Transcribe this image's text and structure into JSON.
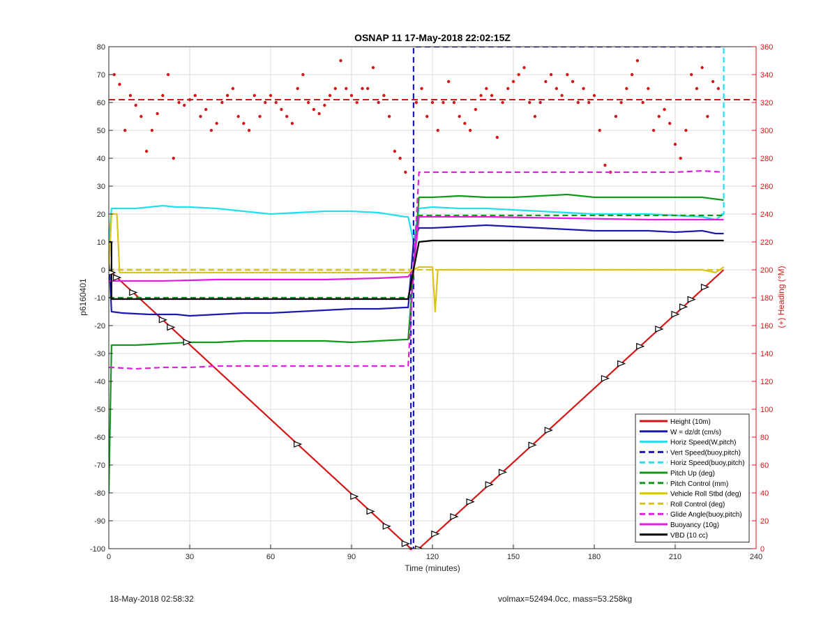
{
  "chart_data": {
    "type": "line",
    "title": "OSNAP 11 17-May-2018 22:02:15Z",
    "xlabel": "Time (minutes)",
    "ylabel": "p6160401",
    "y2label": "(+) Heading (°M)",
    "xlim": [
      0,
      240
    ],
    "ylim": [
      -100,
      80
    ],
    "y2lim": [
      0,
      360
    ],
    "xticks": [
      "0",
      "30",
      "60",
      "90",
      "120",
      "150",
      "180",
      "210",
      "240"
    ],
    "yticks": [
      "80",
      "70",
      "60",
      "50",
      "40",
      "30",
      "20",
      "10",
      "0",
      "-10",
      "-20",
      "-30",
      "-40",
      "-50",
      "-60",
      "-70",
      "-80",
      "-90",
      "-100"
    ],
    "y2ticks": [
      "360",
      "340",
      "320",
      "300",
      "280",
      "260",
      "240",
      "220",
      "200",
      "180",
      "160",
      "140",
      "120",
      "100",
      "80",
      "60",
      "40",
      "20",
      "0"
    ],
    "grid": true,
    "legend_position": "bottom-right",
    "colors": {
      "red": "#d41616",
      "blue": "#1a1aad",
      "cyan": "#20e0f0",
      "green": "#0f9a1a",
      "yellow": "#d9c51a",
      "magenta": "#e01ee0",
      "black": "#000000"
    },
    "series": [
      {
        "name": "Height (10m)",
        "color": "#d41616",
        "dash": false,
        "x": [
          0,
          1,
          112,
          115,
          228
        ],
        "y": [
          0,
          -1,
          -100,
          -100,
          0
        ]
      },
      {
        "name": "W = dz/dt (cm/s)",
        "color": "#1a1aad",
        "dash": false,
        "x": [
          0,
          1,
          5,
          15,
          25,
          30,
          40,
          50,
          60,
          70,
          80,
          90,
          100,
          110,
          111,
          113,
          115,
          120,
          130,
          140,
          150,
          160,
          170,
          180,
          190,
          200,
          210,
          220,
          225,
          228
        ],
        "y": [
          5,
          -15,
          -15.5,
          -16,
          -16,
          -16.5,
          -16,
          -15.5,
          -15.5,
          -15,
          -14.5,
          -14,
          -14,
          -13.5,
          -13.5,
          10,
          15,
          15,
          15.5,
          16,
          15.5,
          15,
          14.5,
          14,
          14,
          14,
          13.5,
          14,
          13,
          13
        ]
      },
      {
        "name": "Horiz Speed(W,pitch)",
        "color": "#20e0f0",
        "dash": false,
        "x": [
          0,
          1,
          5,
          10,
          20,
          25,
          30,
          40,
          50,
          60,
          70,
          80,
          90,
          100,
          110,
          111,
          113,
          115,
          120,
          130,
          140,
          150,
          160,
          170,
          180,
          190,
          200,
          210,
          220,
          225,
          228
        ],
        "y": [
          10,
          22,
          22,
          22,
          23,
          22.5,
          22.5,
          22,
          21,
          20,
          20.5,
          21,
          21,
          20.5,
          19,
          19,
          10,
          22,
          22.5,
          22,
          22,
          21.5,
          21,
          20.5,
          20,
          20,
          20,
          19.5,
          19,
          18,
          20
        ]
      },
      {
        "name": "Vert Speed(buoy,pitch)",
        "color": "#1a1aad",
        "dash": true,
        "x": [
          0,
          1,
          112,
          112,
          113,
          113,
          228
        ],
        "y": [
          0,
          0,
          0,
          -100,
          -100,
          80,
          80
        ]
      },
      {
        "name": "Horiz Speed(buoy,pitch)",
        "color": "#20e0f0",
        "dash": true,
        "x": [
          227,
          228,
          228
        ],
        "y": [
          20,
          20,
          80
        ]
      },
      {
        "name": "Pitch Up (deg)",
        "color": "#0f9a1a",
        "dash": false,
        "x": [
          0,
          1,
          10,
          20,
          30,
          40,
          50,
          60,
          70,
          80,
          90,
          100,
          110,
          111,
          113,
          115,
          120,
          130,
          140,
          150,
          160,
          170,
          180,
          190,
          200,
          210,
          220,
          228
        ],
        "y": [
          -80,
          -27,
          -27,
          -26.5,
          -26,
          -26,
          -25.5,
          -25.5,
          -25.5,
          -25.5,
          -26,
          -25.5,
          -25,
          -25,
          0,
          26,
          26,
          26.5,
          26,
          26,
          26.5,
          27,
          26,
          26,
          26,
          26,
          26,
          25
        ]
      },
      {
        "name": "Pitch Control (mm)",
        "color": "#0f9a1a",
        "dash": true,
        "x": [
          0,
          1,
          111,
          113,
          115,
          228
        ],
        "y": [
          -10,
          -10,
          -10,
          0,
          19.5,
          19.5
        ]
      },
      {
        "name": "Vehicle Roll Stbd (deg)",
        "color": "#d9c51a",
        "dash": false,
        "x": [
          0,
          1,
          3,
          4,
          5,
          10,
          20,
          30,
          40,
          50,
          60,
          70,
          80,
          90,
          100,
          110,
          111,
          113,
          115,
          120,
          121,
          122,
          130,
          140,
          150,
          160,
          170,
          180,
          190,
          200,
          210,
          220,
          225,
          228
        ],
        "y": [
          0,
          20,
          20,
          -1,
          -1,
          -1,
          -1,
          -1,
          -1,
          -1,
          -1,
          -1,
          -1,
          -1,
          -1,
          -1,
          -1,
          0,
          1,
          1,
          -15,
          0,
          0,
          0,
          0,
          0,
          0,
          0,
          0,
          0,
          0,
          0,
          -1,
          1
        ]
      },
      {
        "name": "Roll Control (deg)",
        "color": "#d9c51a",
        "dash": true,
        "x": [
          0,
          1,
          10,
          30,
          60,
          90,
          110,
          111,
          113,
          115,
          150,
          200,
          228
        ],
        "y": [
          0,
          0,
          0,
          0,
          0,
          0,
          0,
          0,
          0,
          0,
          0,
          0,
          0
        ]
      },
      {
        "name": "Glide Angle(buoy,pitch)",
        "color": "#e01ee0",
        "dash": true,
        "x": [
          0,
          1,
          10,
          20,
          30,
          40,
          50,
          60,
          70,
          80,
          90,
          100,
          110,
          111,
          113,
          115,
          120,
          130,
          140,
          150,
          160,
          170,
          180,
          190,
          200,
          210,
          220,
          228
        ],
        "y": [
          -35,
          -35,
          -35.5,
          -35,
          -35,
          -34.5,
          -34.5,
          -34.5,
          -34.5,
          -34.5,
          -34.5,
          -34.5,
          -34.5,
          -34.5,
          0,
          35,
          35,
          35,
          35,
          35,
          35,
          35,
          35,
          35,
          35,
          35,
          35.5,
          35
        ]
      },
      {
        "name": "Buoyancy (10g)",
        "color": "#e01ee0",
        "dash": false,
        "x": [
          0,
          1,
          20,
          40,
          60,
          80,
          100,
          111,
          113,
          115,
          140,
          170,
          200,
          228
        ],
        "y": [
          -4,
          -4,
          -4,
          -3.5,
          -3.5,
          -3.5,
          -3,
          -2.5,
          0,
          19,
          19,
          18.5,
          18,
          18
        ]
      },
      {
        "name": "VBD (10 cc)",
        "color": "#000000",
        "dash": false,
        "x": [
          0,
          1,
          1,
          111,
          113,
          115,
          120,
          228
        ],
        "y": [
          10,
          10,
          -10.5,
          -10.5,
          0,
          10,
          10.5,
          10.5
        ]
      }
    ],
    "heading_series": {
      "color": "#d41616",
      "reference_line": 322,
      "x": [
        2,
        4,
        6,
        8,
        10,
        12,
        14,
        16,
        18,
        20,
        22,
        24,
        26,
        28,
        30,
        32,
        34,
        36,
        38,
        40,
        42,
        44,
        46,
        48,
        50,
        52,
        54,
        56,
        58,
        60,
        62,
        64,
        66,
        68,
        70,
        72,
        74,
        76,
        78,
        80,
        82,
        84,
        86,
        88,
        90,
        92,
        94,
        96,
        98,
        100,
        102,
        104,
        106,
        108,
        110,
        112,
        114,
        116,
        118,
        120,
        122,
        124,
        126,
        128,
        130,
        132,
        134,
        136,
        138,
        140,
        142,
        144,
        146,
        148,
        150,
        152,
        154,
        156,
        158,
        160,
        162,
        164,
        166,
        168,
        170,
        172,
        174,
        176,
        178,
        180,
        182,
        184,
        186,
        188,
        190,
        192,
        194,
        196,
        198,
        200,
        202,
        204,
        206,
        208,
        210,
        212,
        214,
        216,
        218,
        220,
        222,
        224,
        226
      ],
      "y": [
        340,
        333,
        300,
        325,
        318,
        310,
        285,
        300,
        312,
        325,
        340,
        280,
        320,
        318,
        322,
        325,
        310,
        315,
        300,
        305,
        320,
        325,
        330,
        310,
        305,
        300,
        325,
        310,
        320,
        325,
        320,
        315,
        310,
        305,
        330,
        340,
        320,
        315,
        312,
        318,
        325,
        330,
        350,
        330,
        325,
        320,
        330,
        330,
        345,
        320,
        325,
        310,
        285,
        280,
        270,
        0,
        320,
        330,
        310,
        320,
        300,
        320,
        335,
        320,
        310,
        305,
        300,
        315,
        325,
        330,
        325,
        295,
        320,
        330,
        335,
        340,
        345,
        320,
        310,
        320,
        335,
        340,
        330,
        325,
        340,
        335,
        320,
        330,
        320,
        325,
        300,
        275,
        270,
        310,
        320,
        330,
        340,
        350,
        320,
        330,
        300,
        310,
        315,
        305,
        290,
        280,
        300,
        340,
        330,
        345,
        310,
        335,
        330
      ]
    }
  },
  "footer": {
    "left": "18-May-2018 02:58:32",
    "right": "volmax=52494.0cc, mass=53.258kg"
  }
}
